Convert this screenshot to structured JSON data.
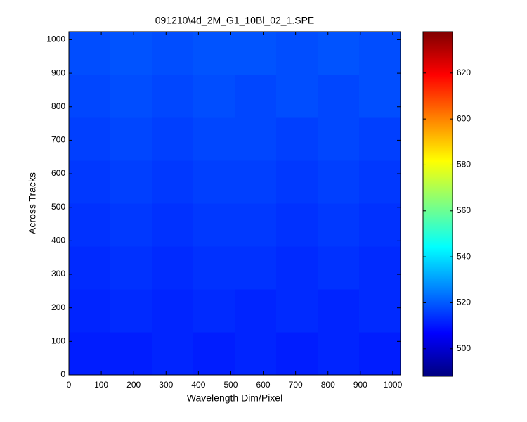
{
  "chart_data": {
    "type": "heatmap",
    "title": "091210\\4d_2M_G1_10Bl_02_1.SPE",
    "x_label": "Wavelength Dim/Pixel",
    "y_label": "Across Tracks",
    "x_bins": [
      0,
      128,
      256,
      384,
      512,
      640,
      768,
      896,
      1024
    ],
    "y_bins": [
      0,
      128,
      256,
      384,
      512,
      640,
      768,
      896,
      1024
    ],
    "values": [
      [
        511,
        511,
        512,
        511,
        512,
        511,
        512,
        511
      ],
      [
        512,
        513,
        512,
        513,
        512,
        513,
        512,
        513
      ],
      [
        513,
        514,
        513,
        514,
        514,
        513,
        514,
        513
      ],
      [
        514,
        515,
        514,
        515,
        515,
        514,
        515,
        514
      ],
      [
        515,
        516,
        515,
        516,
        516,
        515,
        516,
        515
      ],
      [
        516,
        517,
        516,
        517,
        517,
        516,
        517,
        516
      ],
      [
        517,
        518,
        517,
        518,
        517,
        518,
        517,
        518
      ],
      [
        518,
        519,
        518,
        519,
        519,
        518,
        519,
        518
      ]
    ],
    "colormap": "jet",
    "xlim": [
      0,
      1024
    ],
    "ylim": [
      0,
      1024
    ],
    "xticks": [
      0,
      100,
      200,
      300,
      400,
      500,
      600,
      700,
      800,
      900,
      1000
    ],
    "yticks": [
      0,
      100,
      200,
      300,
      400,
      500,
      600,
      700,
      800,
      900,
      1000
    ],
    "clim": [
      488,
      638
    ],
    "cticks": [
      500,
      520,
      540,
      560,
      580,
      600,
      620
    ]
  }
}
